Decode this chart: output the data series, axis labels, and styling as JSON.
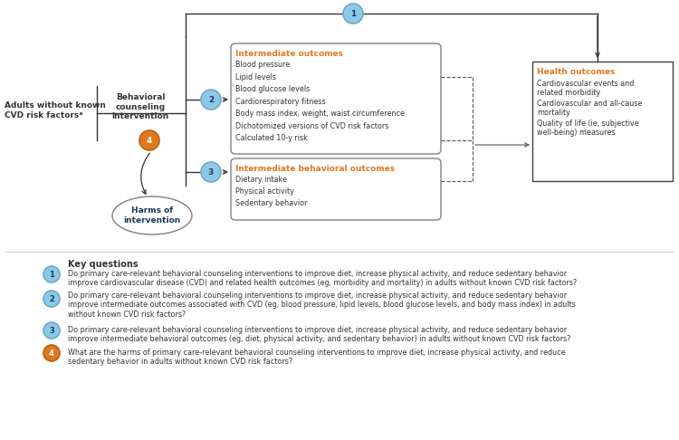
{
  "fig_width": 7.5,
  "fig_height": 4.86,
  "dpi": 100,
  "bg_color": "#ffffff",
  "blue_circle_color": "#8ec8e8",
  "blue_circle_edge": "#6aaac8",
  "orange_circle_color": "#e07820",
  "orange_circle_edge": "#c06010",
  "box_edge_solid": "#404040",
  "box_edge_rounded": "#808080",
  "text_dark": "#333333",
  "text_orange": "#e07820",
  "text_blue_dark": "#1a3a5a",
  "left_label": "Adults without known\nCVD risk factorsᵃ",
  "interv_label": "Behavioral\ncounseling\nintervention",
  "io_title": "Intermediate outcomes",
  "io_items": [
    "Blood pressure",
    "Lipid levels",
    "Blood glucose levels",
    "Cardiorespiratory fitness",
    "Body mass index, weight, waist circumference",
    "Dichotomized versions of CVD risk factors",
    "Calculated 10-y risk"
  ],
  "bo_title": "Intermediate behavioral outcomes",
  "bo_items": [
    "Dietary intake",
    "Physical activity",
    "Sedentary behavior"
  ],
  "ho_title": "Health outcomes",
  "ho_items": [
    "Cardiovascular events and\nrelated morbidity",
    "Cardiovascular and all-cause\nmortality",
    "Quality of life (ie, subjective\nwell-being) measures"
  ],
  "harms_label": "Harms of\nintervention",
  "kq_title": "Key questions",
  "kq1": "Do primary care-relevant behavioral counseling interventions to improve diet, increase physical activity, and reduce sedentary behavior\nimprove cardiovascular disease (CVD) and related health outcomes (eg, morbidity and mortality) in adults without known CVD risk factors?",
  "kq2": "Do primary care-relevant behavioral counseling interventions to improve diet, increase physical activity, and reduce sedentary behavior\nimprove intermediate outcomes associated with CVD (eg, blood pressure, lipid levels, blood glucose levels, and body mass index) in adults\nwithout known CVD risk factors?",
  "kq3": "Do primary care-relevant behavioral counseling interventions to improve diet, increase physical activity, and reduce sedentary behavior\nimprove intermediate behavioral outcomes (eg, diet, physical activity, and sedentary behavior) in adults without known CVD risk factors?",
  "kq4": "What are the harms of primary care-relevant behavioral counseling interventions to improve diet, increase physical activity, and reduce\nsedentary behavior in adults without known CVD risk factors?"
}
